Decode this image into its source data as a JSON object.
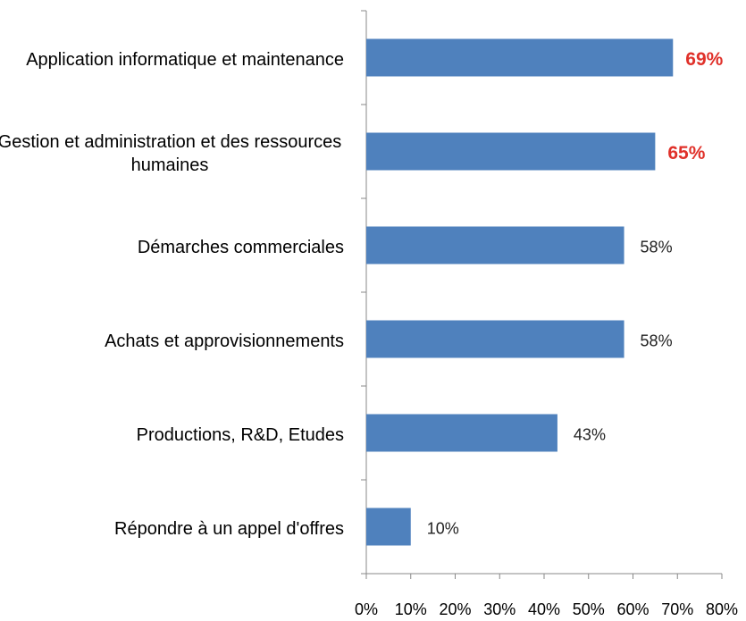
{
  "chart_data": {
    "type": "bar",
    "orientation": "horizontal",
    "categories": [
      "Application informatique et maintenance",
      "Gestion et administration et des ressources humaines",
      "Démarches commerciales",
      "Achats et approvisionnements",
      "Productions, R&D, Etudes",
      "Répondre à un appel d'offres"
    ],
    "values": [
      69,
      65,
      58,
      58,
      43,
      10
    ],
    "value_labels": [
      "69%",
      "65%",
      "58%",
      "58%",
      "43%",
      "10%"
    ],
    "value_label_colors": [
      "#e0312a",
      "#e0312a",
      "#222222",
      "#222222",
      "#222222",
      "#222222"
    ],
    "color": "#4f81bd",
    "xlim": [
      0,
      80
    ],
    "xticks": [
      {
        "value": 0,
        "label": "0%"
      },
      {
        "value": 10,
        "label": "10%"
      },
      {
        "value": 20,
        "label": "20%"
      },
      {
        "value": 30,
        "label": "30%"
      },
      {
        "value": 40,
        "label": "40%"
      },
      {
        "value": 50,
        "label": "50%"
      },
      {
        "value": 60,
        "label": "60%"
      },
      {
        "value": 70,
        "label": "70%"
      },
      {
        "value": 80,
        "label": "80%"
      }
    ],
    "grid": false
  }
}
